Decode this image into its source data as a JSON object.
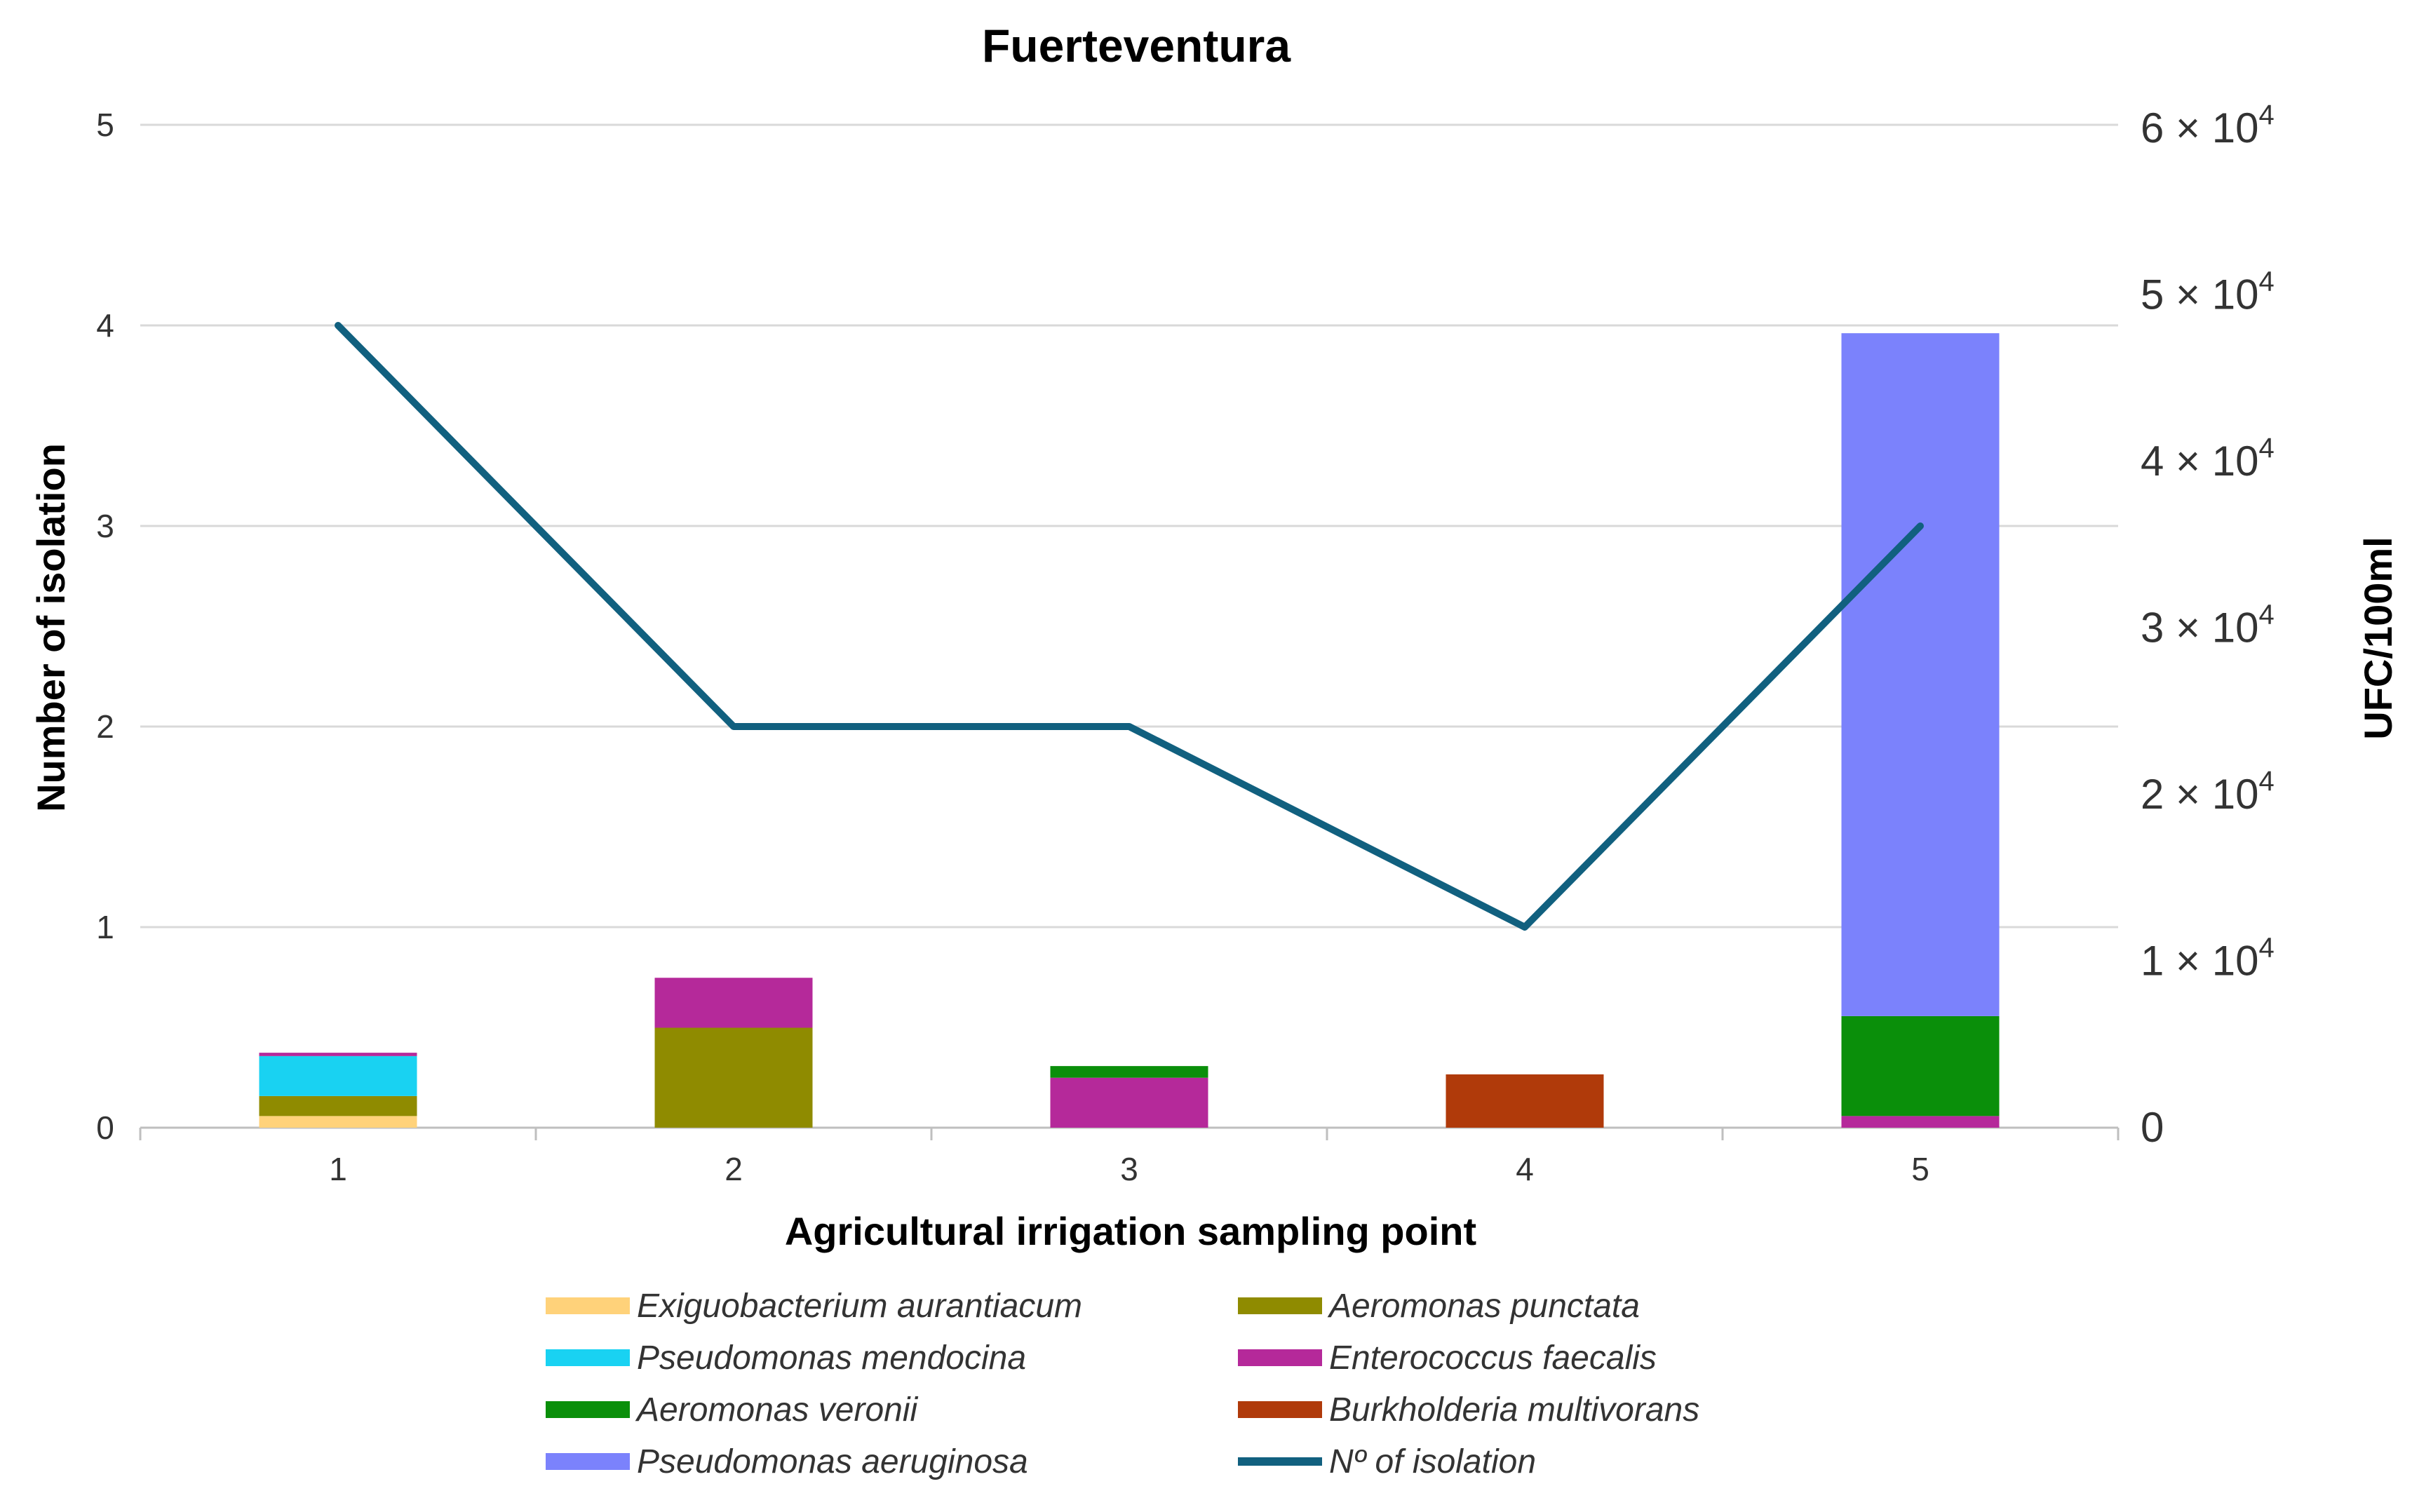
{
  "chart_data": {
    "type": "bar",
    "title": "Fuerteventura",
    "xlabel": "Agricultural irrigation sampling point",
    "ylabel": "Number of isolation",
    "y2label": "UFC/100ml",
    "categories": [
      "1",
      "2",
      "3",
      "4",
      "5"
    ],
    "y_ticks": [
      "0",
      "1",
      "2",
      "3",
      "4",
      "5"
    ],
    "ylim": [
      0,
      5
    ],
    "y2lim": [
      0,
      60000
    ],
    "y2_ticks": [
      {
        "value": 0,
        "mantissa": "0",
        "exp": ""
      },
      {
        "value": 10000,
        "mantissa": "1 × 10",
        "exp": "4"
      },
      {
        "value": 20000,
        "mantissa": "2 × 10",
        "exp": "4"
      },
      {
        "value": 30000,
        "mantissa": "3 × 10",
        "exp": "4"
      },
      {
        "value": 40000,
        "mantissa": "4 × 10",
        "exp": "4"
      },
      {
        "value": 50000,
        "mantissa": "5 × 10",
        "exp": "4"
      },
      {
        "value": 60000,
        "mantissa": "6 × 10",
        "exp": "4"
      }
    ],
    "stacked_bar_series_axis": "UFC/100ml",
    "series": [
      {
        "name": "Exiguobacterium aurantiacum",
        "type": "bar",
        "color": "#ffd27a",
        "values": [
          700,
          0,
          0,
          0,
          0
        ]
      },
      {
        "name": "Aeromonas punctata",
        "type": "bar",
        "color": "#8f8b00",
        "values": [
          1200,
          6000,
          0,
          0,
          0
        ]
      },
      {
        "name": "Pseudomonas mendocina",
        "type": "bar",
        "color": "#19d2f2",
        "values": [
          2400,
          0,
          0,
          0,
          0
        ]
      },
      {
        "name": "Enterococcus faecalis",
        "type": "bar",
        "color": "#b5299a",
        "values": [
          200,
          3000,
          3000,
          0,
          700
        ]
      },
      {
        "name": "Aeromonas veronii",
        "type": "bar",
        "color": "#0a8f0a",
        "values": [
          0,
          0,
          700,
          0,
          6000
        ]
      },
      {
        "name": "Burkholderia multivorans",
        "type": "bar",
        "color": "#b03a0a",
        "values": [
          0,
          0,
          0,
          3200,
          0
        ]
      },
      {
        "name": "Pseudomonas aeruginosa",
        "type": "bar",
        "color": "#7b82fc",
        "values": [
          0,
          0,
          0,
          0,
          41000
        ]
      },
      {
        "name": "Nº of isolation",
        "type": "line",
        "color": "#11607f",
        "axis": "left",
        "values": [
          4,
          2,
          2,
          1,
          3
        ]
      }
    ],
    "legend_position": "bottom",
    "grid": true
  }
}
